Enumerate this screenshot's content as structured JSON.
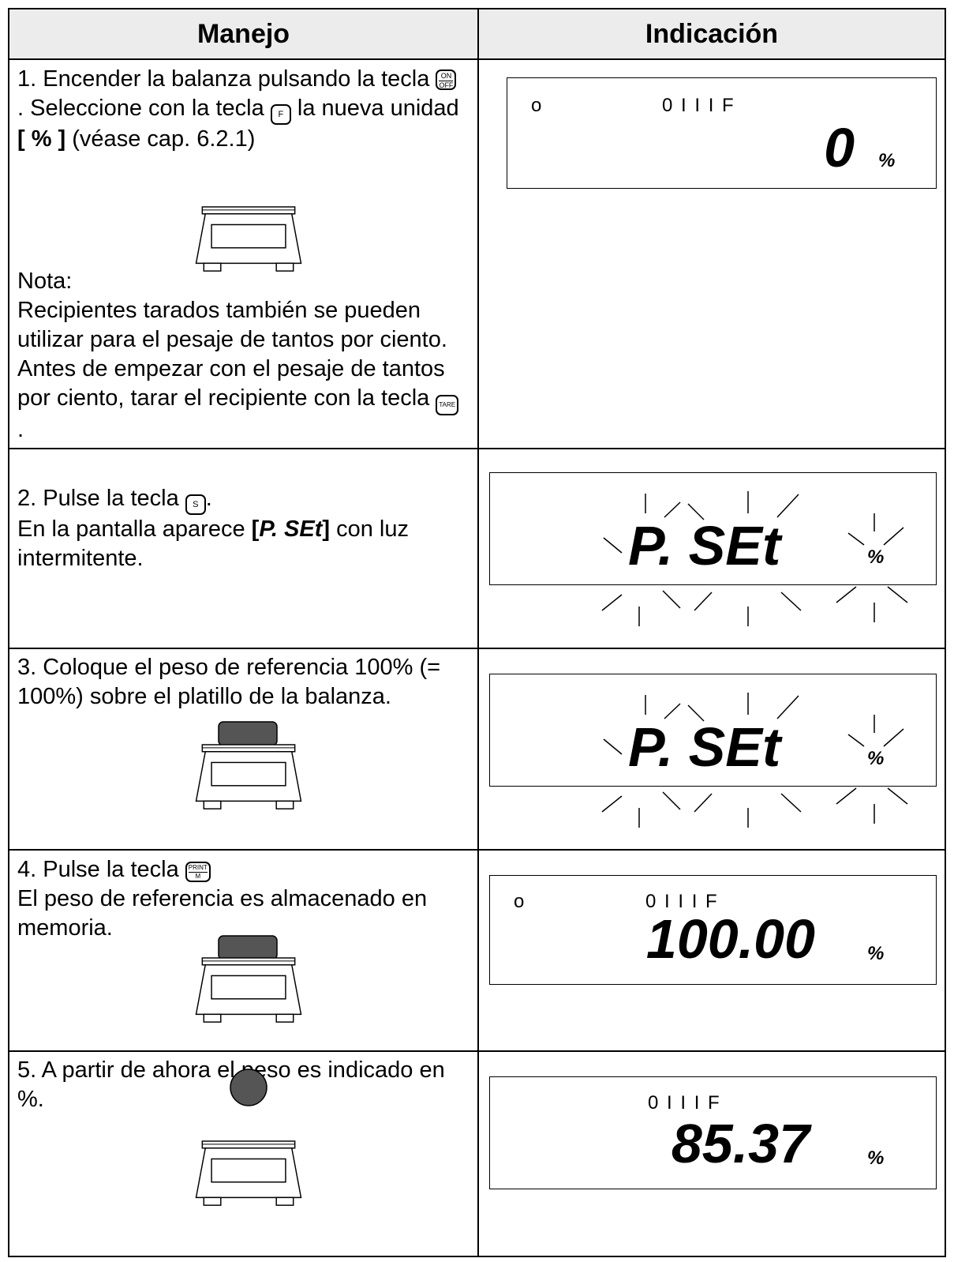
{
  "table": {
    "header": [
      "Manejo",
      "Indicación"
    ],
    "rows": [
      {
        "instruction": [
          "1.   Encender la balanza pulsando la tecla ",
          ". Seleccione con la tecla ",
          " la nueva unidad ",
          "[ % ]",
          " (véase cap. 6.2.1)"
        ],
        "keys": [
          "ON",
          "OFF",
          "F"
        ],
        "note_title": "Nota:",
        "note": [
          "Recipientes tarados también se pueden utilizar para el pesaje de tantos por ciento. Antes de empezar con el pesaje de tantos por ciento, tarar el recipiente con la tecla ",
          "."
        ],
        "note_keys": [
          "TARE"
        ],
        "display": {
          "indicator": "o",
          "status": "0 I I I F",
          "value": "0",
          "unit": "%"
        }
      },
      {
        "instruction": [
          "2.  Pulse la tecla ",
          "."
        ],
        "keys": [
          "S"
        ],
        "line2": [
          "En la pantalla aparece ",
          "[",
          "P. SEt",
          "]",
          " con luz intermitente."
        ],
        "display": {
          "value": "P. SEt",
          "unit": "%"
        }
      },
      {
        "instruction": [
          "3.  Coloque el peso de referencia 100% (= 100%) sobre el platillo de la balanza."
        ],
        "display": {
          "value": "P. SEt",
          "unit": "%"
        }
      },
      {
        "instruction": [
          "4.  Pulse la tecla "
        ],
        "keys": [
          "PRINT",
          "M"
        ],
        "line2": [
          "El peso de referencia es almacenado en memoria."
        ],
        "display": {
          "indicator": "o",
          "status": "0 I I I F",
          "value": "100.00",
          "unit": "%"
        }
      },
      {
        "instruction": [
          "5. A partir de ahora el peso es indicado en %."
        ],
        "display": {
          "status": "0 I I I F",
          "value": "85.37",
          "unit": "%"
        }
      }
    ]
  }
}
